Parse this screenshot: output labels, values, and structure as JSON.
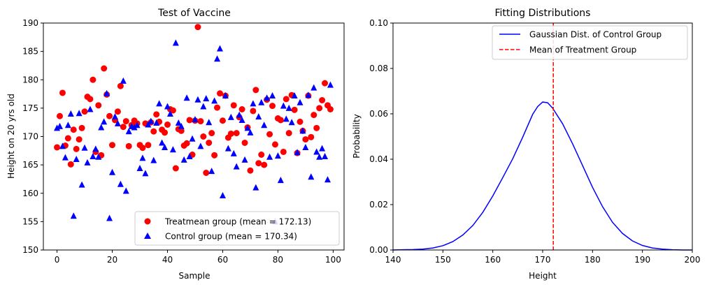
{
  "chart_data": [
    {
      "type": "scatter",
      "title": "Test of Vaccine",
      "xlabel": "Sample",
      "ylabel": "Height on 20 yrs old",
      "xlim": [
        -4.95,
        103.95
      ],
      "ylim": [
        150,
        190
      ],
      "xticks": [
        0,
        20,
        40,
        60,
        80,
        100
      ],
      "yticks": [
        150,
        155,
        160,
        165,
        170,
        175,
        180,
        185,
        190
      ],
      "legend_position": "lower-right",
      "series": [
        {
          "name": "Treatmean group (mean = 172.13)",
          "marker": "circle",
          "color": "#ff0000",
          "x": [
            0,
            1,
            2,
            3,
            4,
            5,
            6,
            7,
            8,
            9,
            10,
            11,
            12,
            13,
            14,
            15,
            16,
            17,
            18,
            19,
            20,
            21,
            22,
            23,
            24,
            25,
            26,
            27,
            28,
            29,
            30,
            31,
            32,
            33,
            34,
            35,
            36,
            37,
            38,
            39,
            40,
            41,
            42,
            43,
            44,
            45,
            46,
            47,
            48,
            49,
            50,
            51,
            52,
            53,
            54,
            55,
            56,
            57,
            58,
            59,
            60,
            61,
            62,
            63,
            64,
            65,
            66,
            67,
            68,
            69,
            70,
            71,
            72,
            73,
            74,
            75,
            76,
            77,
            78,
            79,
            80,
            81,
            82,
            83,
            84,
            85,
            86,
            87,
            88,
            89,
            90,
            91,
            92,
            93,
            94,
            95,
            96,
            97,
            98,
            99
          ],
          "y": [
            168.1,
            173.6,
            177.7,
            168.4,
            169.7,
            165.1,
            171.2,
            167.8,
            169.5,
            171.5,
            174.4,
            177.0,
            176.6,
            180.0,
            167.3,
            175.5,
            166.7,
            182.0,
            177.4,
            173.6,
            168.5,
            172.9,
            174.4,
            178.9,
            171.7,
            172.7,
            168.3,
            172.0,
            172.8,
            172.3,
            168.5,
            168.0,
            172.3,
            168.5,
            172.5,
            170.9,
            173.9,
            172.6,
            171.2,
            170.7,
            172.1,
            174.8,
            174.6,
            164.4,
            171.3,
            171.0,
            168.4,
            168.8,
            172.9,
            166.8,
            172.8,
            189.3,
            172.7,
            170.0,
            163.6,
            168.9,
            170.6,
            166.7,
            175.1,
            177.6,
            172.8,
            177.2,
            169.8,
            170.5,
            175.5,
            170.6,
            173.4,
            174.8,
            168.9,
            171.6,
            164.0,
            174.5,
            178.2,
            165.3,
            166.8,
            165.0,
            176.5,
            170.4,
            175.4,
            168.6,
            173.2,
            172.9,
            167.3,
            176.6,
            170.6,
            177.3,
            174.7,
            167.1,
            172.6,
            171.0,
            169.5,
            177.2,
            169.9,
            173.8,
            171.5,
            175.0,
            176.4,
            179.4,
            175.5,
            174.8
          ]
        },
        {
          "name": "Control group (mean = 170.34)",
          "marker": "triangle",
          "color": "#0000ff",
          "x": [
            0,
            1,
            2,
            3,
            4,
            5,
            6,
            7,
            8,
            9,
            10,
            11,
            12,
            13,
            14,
            15,
            16,
            17,
            18,
            19,
            20,
            21,
            22,
            23,
            24,
            25,
            26,
            27,
            28,
            29,
            30,
            31,
            32,
            33,
            34,
            35,
            36,
            37,
            38,
            39,
            40,
            41,
            42,
            43,
            44,
            45,
            46,
            47,
            48,
            49,
            50,
            51,
            52,
            53,
            54,
            55,
            56,
            57,
            58,
            59,
            60,
            61,
            62,
            63,
            64,
            65,
            66,
            67,
            68,
            69,
            70,
            71,
            72,
            73,
            74,
            75,
            76,
            77,
            78,
            79,
            80,
            81,
            82,
            83,
            84,
            85,
            86,
            87,
            88,
            89,
            90,
            91,
            92,
            93,
            94,
            95,
            96,
            97,
            98,
            99
          ],
          "y": [
            171.5,
            171.8,
            168.3,
            166.3,
            172.0,
            174.0,
            156.0,
            166.0,
            174.1,
            161.5,
            168.0,
            165.4,
            174.8,
            166.5,
            167.8,
            166.4,
            171.6,
            172.6,
            177.6,
            155.6,
            163.7,
            173.5,
            172.3,
            161.6,
            179.8,
            160.4,
            170.9,
            171.8,
            171.6,
            172.0,
            164.4,
            166.2,
            163.5,
            172.1,
            172.7,
            165.8,
            172.4,
            175.8,
            168.9,
            168.1,
            175.3,
            174.0,
            167.7,
            186.5,
            172.4,
            171.8,
            165.9,
            176.8,
            166.5,
            169.6,
            173.0,
            176.5,
            168.3,
            175.3,
            176.7,
            172.5,
            163.9,
            176.3,
            183.7,
            185.5,
            159.6,
            177.2,
            167.9,
            173.4,
            167.0,
            164.7,
            173.8,
            172.9,
            165.9,
            171.5,
            170.7,
            175.8,
            161.0,
            173.5,
            176.0,
            172.0,
            176.8,
            166.4,
            177.2,
            155.0,
            166.6,
            162.3,
            175.4,
            173.1,
            175.0,
            172.5,
            177.2,
            167.2,
            176.0,
            171.0,
            168.1,
            177.3,
            162.9,
            178.6,
            167.3,
            166.4,
            167.9,
            166.5,
            162.4,
            179.1
          ]
        }
      ]
    },
    {
      "type": "line",
      "title": "Fitting Distributions",
      "xlabel": "Height",
      "ylabel": "Probability",
      "xlim": [
        140,
        200
      ],
      "ylim": [
        0,
        0.1
      ],
      "xticks": [
        140,
        150,
        160,
        170,
        180,
        190,
        200
      ],
      "yticks": [
        0.0,
        0.02,
        0.04,
        0.06,
        0.08,
        0.1
      ],
      "ytick_labels": [
        "0.00",
        "0.02",
        "0.04",
        "0.06",
        "0.08",
        "0.10"
      ],
      "legend_position": "top-right",
      "series": [
        {
          "name": "Gaussian Dist. of Control Group",
          "style": "solid",
          "color": "#0000ff",
          "x": [
            140,
            142,
            144,
            146,
            148,
            150,
            152,
            154,
            156,
            158,
            160,
            162,
            164,
            166,
            168,
            169,
            170,
            171,
            172,
            174,
            176,
            178,
            180,
            182,
            184,
            186,
            188,
            190,
            192,
            194,
            196,
            198,
            200
          ],
          "y": [
            0.0,
            0.0001,
            0.0002,
            0.0004,
            0.0009,
            0.0019,
            0.0037,
            0.0066,
            0.0108,
            0.0166,
            0.0238,
            0.0319,
            0.0402,
            0.0497,
            0.0598,
            0.0632,
            0.0652,
            0.0649,
            0.0625,
            0.0556,
            0.0468,
            0.0372,
            0.0276,
            0.0191,
            0.0122,
            0.0073,
            0.004,
            0.002,
            0.0009,
            0.0004,
            0.0001,
            0.0,
            0.0
          ]
        },
        {
          "name": "Mean of Treatment Group",
          "style": "dashed",
          "color": "#ff0000",
          "x_value": 172.13
        }
      ]
    }
  ]
}
